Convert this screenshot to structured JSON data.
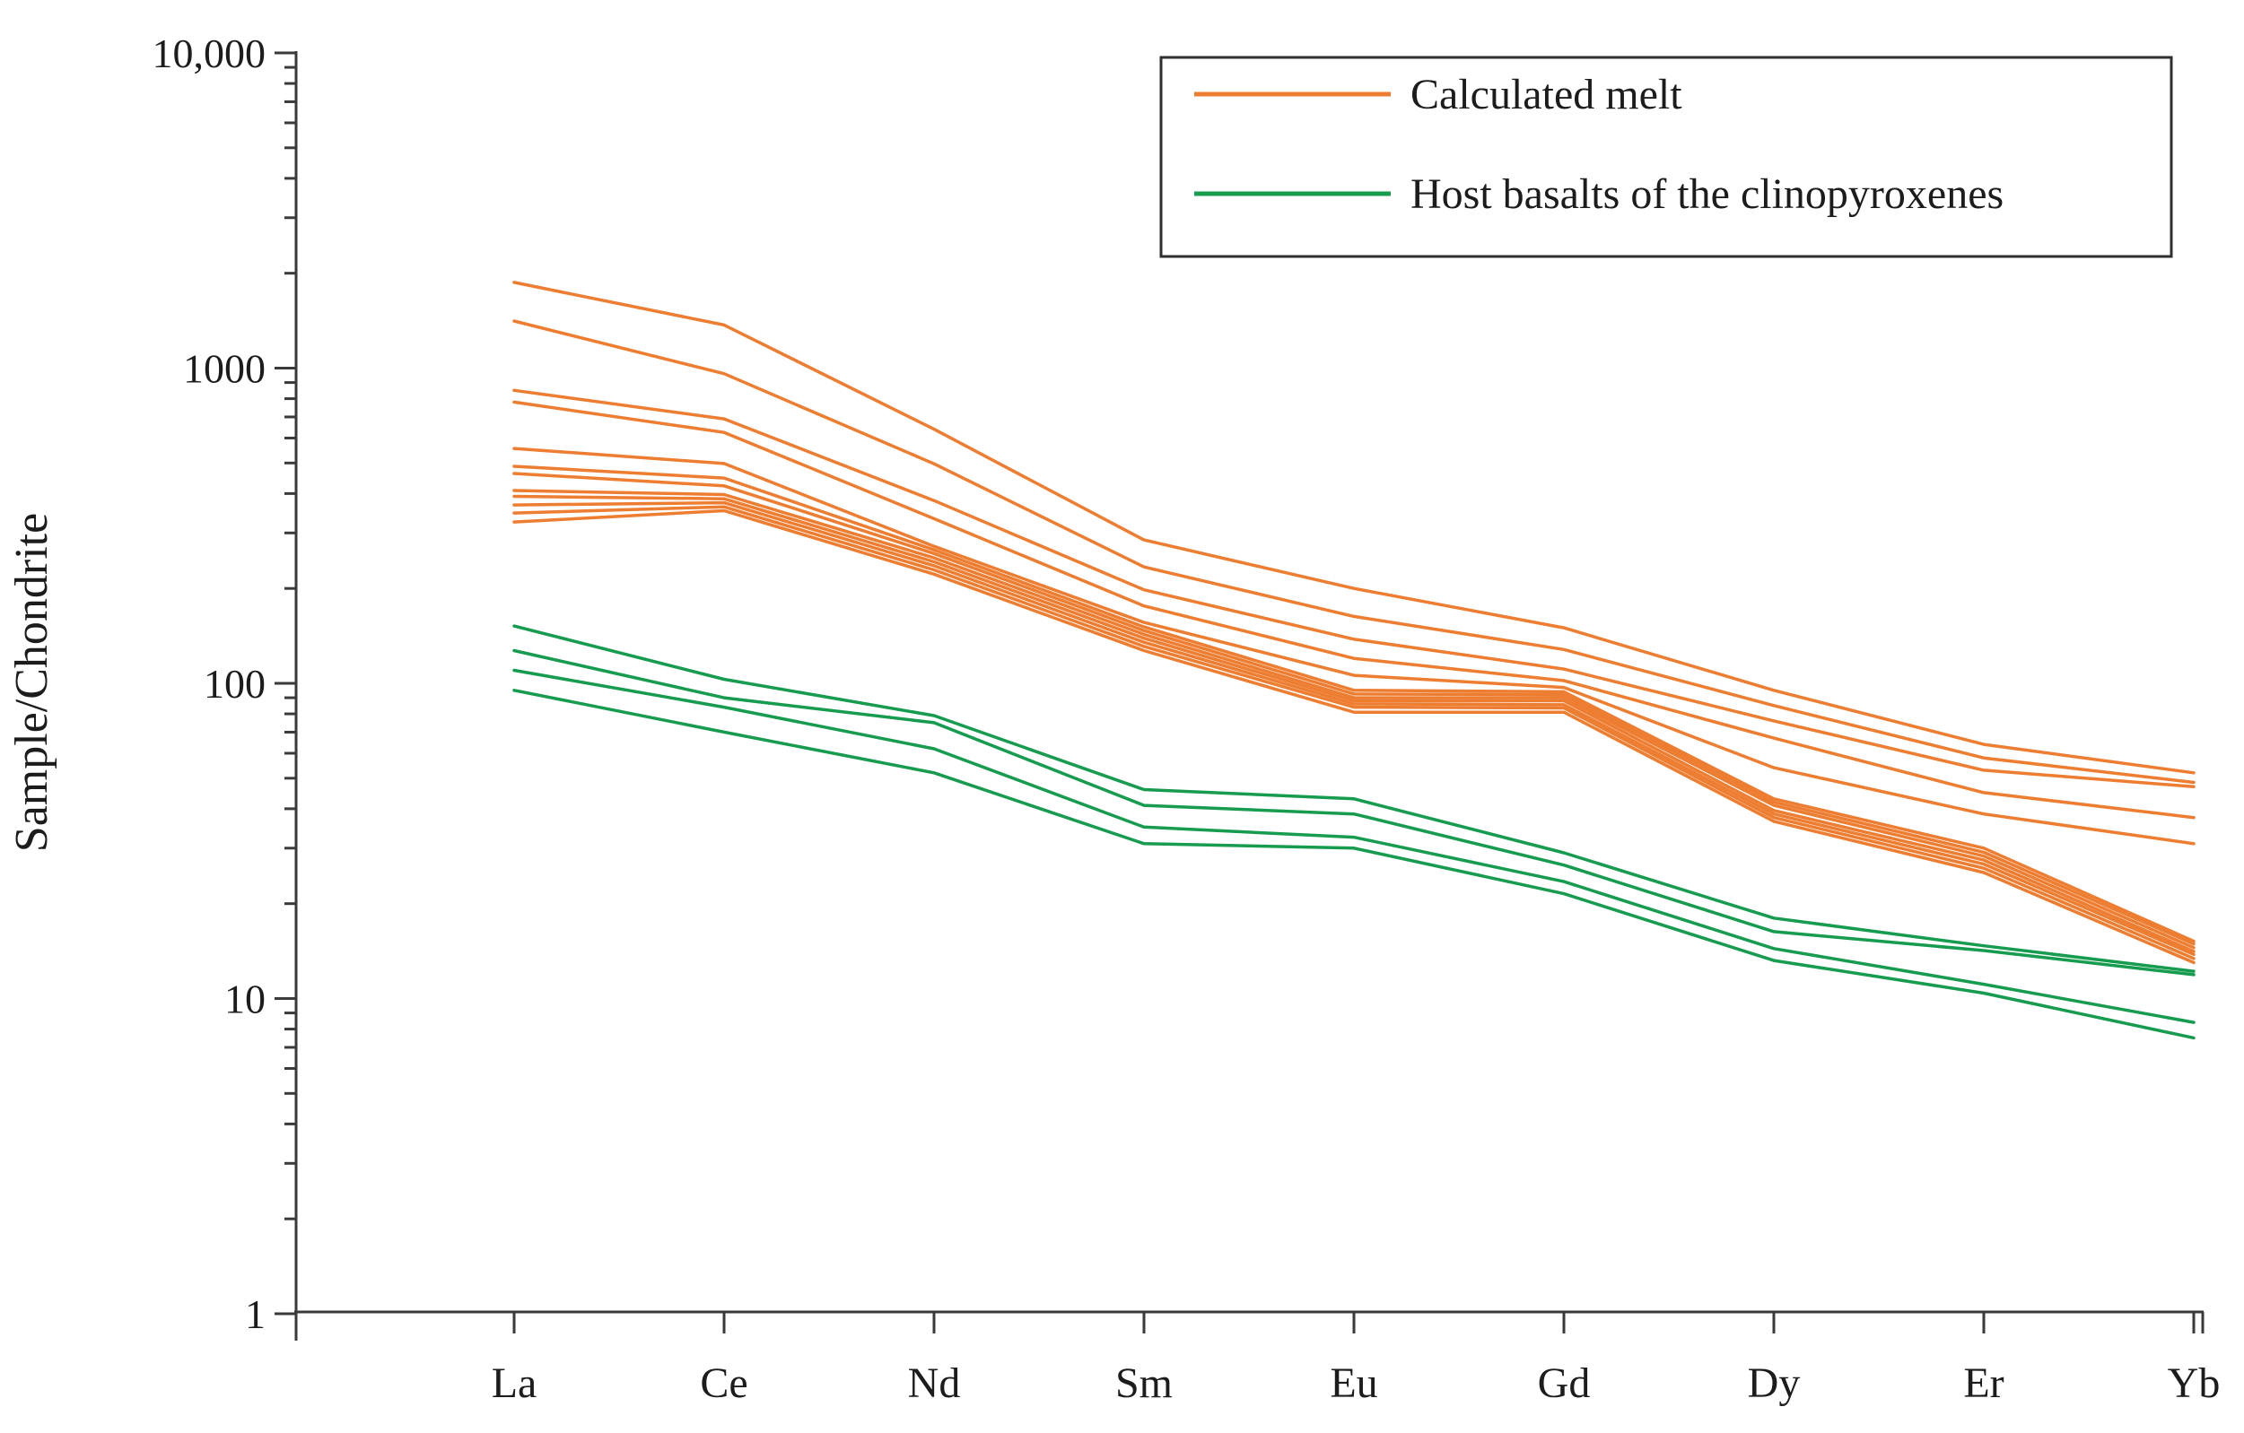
{
  "figure": {
    "y_axis_title": "Sample/Chondrite",
    "y_tick_labels": [
      "10,000",
      "1000",
      "100",
      "10",
      "1"
    ],
    "y_tick_values": [
      10000,
      1000,
      100,
      10,
      1
    ],
    "x_tick_labels": [
      "La",
      "Ce",
      "Nd",
      "Sm",
      "Eu",
      "Gd",
      "Dy",
      "Er",
      "Yb"
    ],
    "colors": {
      "melt_orange": "#ED7D31",
      "basalt_green": "#169B4F",
      "axis": "#3a3a3a",
      "text": "#1c1c1c",
      "legend_border": "#2f2f2f"
    }
  },
  "legend": {
    "items": [
      {
        "label": "Calculated melt",
        "color": "#ED7D31",
        "series_group": "melt"
      },
      {
        "label": "Host basalts of the clinopyroxenes",
        "color": "#169B4F",
        "series_group": "basalt"
      }
    ]
  },
  "chart_data": {
    "type": "line",
    "title": "",
    "xlabel": "",
    "ylabel": "Sample/Chondrite",
    "x_categories": [
      "La",
      "Ce",
      "Nd",
      "Sm",
      "Eu",
      "Gd",
      "Dy",
      "Er",
      "Yb"
    ],
    "y_scale": "log",
    "ylim": [
      1,
      10000
    ],
    "grid": false,
    "legend_position": "top-right",
    "series": [
      {
        "name": "Calculated melt",
        "group": "melt",
        "color": "#ED7D31",
        "values": [
          1870,
          1370,
          640,
          285,
          200,
          150,
          95,
          64,
          52
        ]
      },
      {
        "name": "Calculated melt",
        "group": "melt",
        "color": "#ED7D31",
        "values": [
          1410,
          960,
          497,
          234,
          163,
          128,
          85,
          58,
          48.5
        ]
      },
      {
        "name": "Calculated melt",
        "group": "melt",
        "color": "#ED7D31",
        "values": [
          850,
          690,
          380,
          198,
          138,
          111,
          76,
          53,
          47
        ]
      },
      {
        "name": "Calculated melt",
        "group": "melt",
        "color": "#ED7D31",
        "values": [
          780,
          625,
          333,
          176,
          120,
          102,
          67,
          45,
          37.5
        ]
      },
      {
        "name": "Calculated melt",
        "group": "melt",
        "color": "#ED7D31",
        "values": [
          556,
          498,
          272,
          156,
          106,
          97,
          54,
          38.5,
          31
        ]
      },
      {
        "name": "Calculated melt",
        "group": "melt",
        "color": "#ED7D31",
        "values": [
          488,
          448,
          265,
          151,
          95,
          94,
          43,
          30,
          15.2
        ]
      },
      {
        "name": "Calculated melt",
        "group": "melt",
        "color": "#ED7D31",
        "values": [
          463,
          423,
          258,
          147,
          92.5,
          92,
          42,
          29.1,
          14.9
        ]
      },
      {
        "name": "Calculated melt",
        "group": "melt",
        "color": "#ED7D31",
        "values": [
          409,
          397,
          250,
          143,
          90,
          90,
          41,
          28.3,
          14.5
        ]
      },
      {
        "name": "Calculated melt",
        "group": "melt",
        "color": "#ED7D31",
        "values": [
          392,
          385,
          243,
          139,
          88,
          88,
          39.5,
          27.5,
          14.1
        ]
      },
      {
        "name": "Calculated melt",
        "group": "melt",
        "color": "#ED7D31",
        "values": [
          368,
          374,
          236,
          135,
          86,
          85.5,
          38.5,
          26.7,
          13.8
        ]
      },
      {
        "name": "Calculated melt",
        "group": "melt",
        "color": "#ED7D31",
        "values": [
          347,
          363,
          229,
          131,
          84,
          83.5,
          37.5,
          25.9,
          13.4
        ]
      },
      {
        "name": "Calculated melt",
        "group": "melt",
        "color": "#ED7D31",
        "values": [
          325,
          353,
          222,
          127,
          81,
          81,
          36.5,
          25.1,
          13.0
        ]
      },
      {
        "name": "Host basalts of the clinopyroxenes",
        "group": "basalt",
        "color": "#169B4F",
        "values": [
          152,
          103,
          79,
          46,
          43,
          29,
          18,
          14.7,
          12.2
        ]
      },
      {
        "name": "Host basalts of the clinopyroxenes",
        "group": "basalt",
        "color": "#169B4F",
        "values": [
          127,
          90,
          75,
          41,
          38.5,
          26.5,
          16.3,
          14.2,
          11.9
        ]
      },
      {
        "name": "Host basalts of the clinopyroxenes",
        "group": "basalt",
        "color": "#169B4F",
        "values": [
          110,
          84,
          62,
          35,
          32.5,
          23.5,
          14.4,
          11.1,
          8.4
        ]
      },
      {
        "name": "Host basalts of the clinopyroxenes",
        "group": "basalt",
        "color": "#169B4F",
        "values": [
          95,
          70,
          52,
          31,
          30,
          21.5,
          13.2,
          10.4,
          7.5
        ]
      }
    ]
  }
}
